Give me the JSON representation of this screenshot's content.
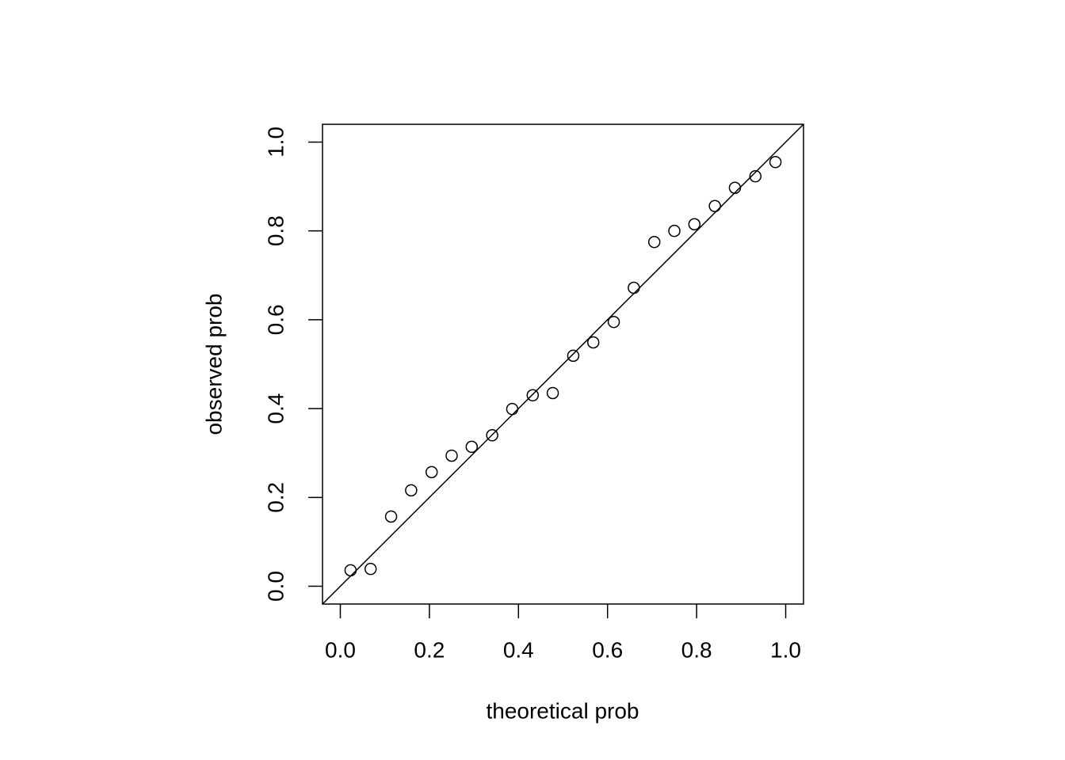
{
  "chart_data": {
    "type": "scatter",
    "x_label": "theoretical prob",
    "y_label": "observed prob",
    "x": [
      0.023,
      0.068,
      0.114,
      0.159,
      0.205,
      0.25,
      0.295,
      0.341,
      0.386,
      0.432,
      0.477,
      0.523,
      0.568,
      0.614,
      0.659,
      0.705,
      0.75,
      0.795,
      0.841,
      0.886,
      0.932,
      0.977
    ],
    "values": [
      0.036,
      0.039,
      0.157,
      0.216,
      0.257,
      0.294,
      0.314,
      0.34,
      0.399,
      0.43,
      0.435,
      0.519,
      0.549,
      0.595,
      0.672,
      0.775,
      0.8,
      0.815,
      0.856,
      0.897,
      0.923,
      0.955
    ],
    "color": "#000000",
    "xlim": [
      -0.04,
      1.04
    ],
    "ylim": [
      -0.04,
      1.04
    ],
    "xticks": [
      {
        "value": 0,
        "label": "0.0"
      },
      0.2,
      0.4,
      0.6,
      0.8,
      {
        "value": 1,
        "label": "1.0"
      }
    ],
    "yticks": [
      {
        "value": 0,
        "label": "0.0"
      },
      0.2,
      0.4,
      0.6,
      0.8,
      {
        "value": 1,
        "label": "1.0"
      }
    ],
    "diagonal": true,
    "grid": false
  }
}
